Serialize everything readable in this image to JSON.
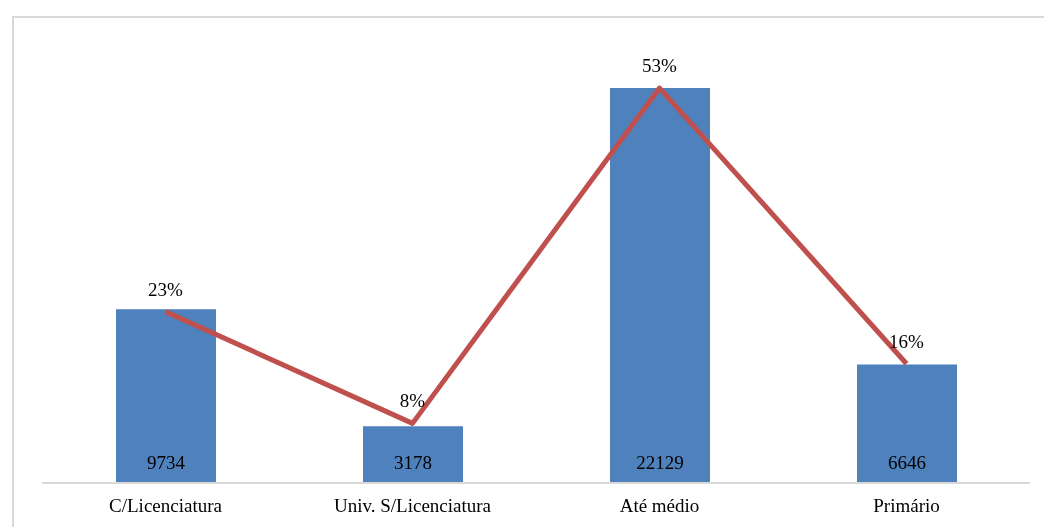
{
  "chart_data": {
    "type": "bar",
    "categories": [
      "C/Licenciatura",
      "Univ. S/Licenciatura",
      "Até médio",
      "Primário"
    ],
    "tick_labels": "x",
    "series": [
      {
        "color": "#4f81bd",
        "values": [
          9734,
          3178,
          22129,
          6646
        ],
        "data_labels": true
      },
      {
        "type": "line",
        "axis": "y2",
        "color": "#c0504d",
        "values": [
          23,
          8,
          53,
          16
        ],
        "value_labels": [
          "23%",
          "8%",
          "53%",
          "16%"
        ],
        "marker": "none"
      }
    ]
  }
}
